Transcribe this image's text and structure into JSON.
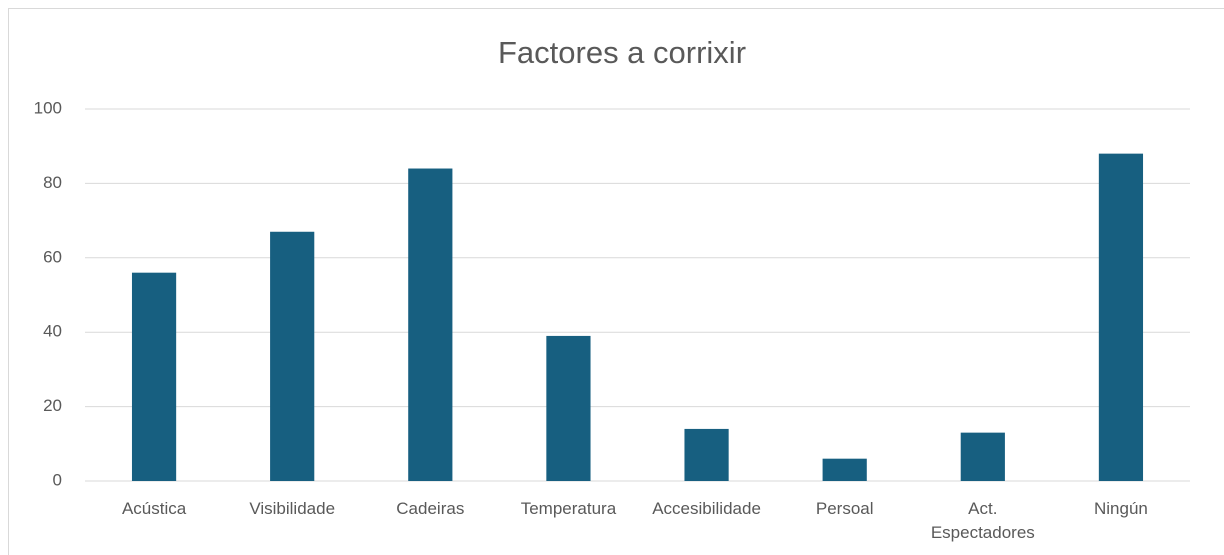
{
  "chart_data": {
    "type": "bar",
    "title": "Factores a corrixir",
    "categories": [
      "Acústica",
      "Visibilidade",
      "Cadeiras",
      "Temperatura",
      "Accesibilidade",
      "Persoal",
      "Act. Espectadores",
      "Ningún"
    ],
    "values": [
      56,
      67,
      84,
      39,
      14,
      6,
      13,
      88
    ],
    "color": "#175f80",
    "ylim": [
      0,
      100
    ],
    "yticks": [
      0,
      20,
      40,
      60,
      80,
      100
    ],
    "grid": true
  }
}
